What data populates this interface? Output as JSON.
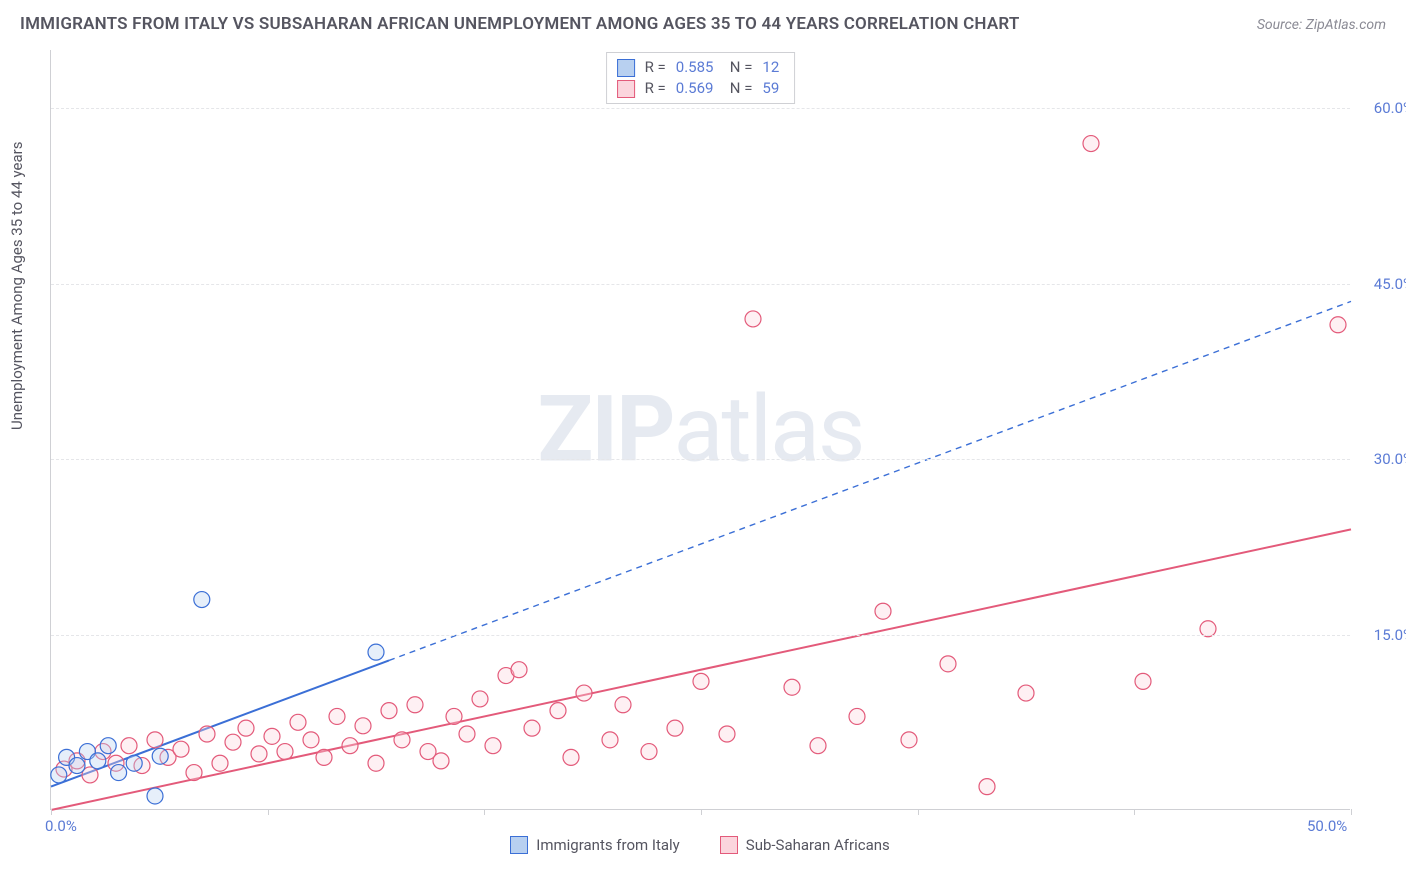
{
  "title": "IMMIGRANTS FROM ITALY VS SUBSAHARAN AFRICAN UNEMPLOYMENT AMONG AGES 35 TO 44 YEARS CORRELATION CHART",
  "source": "Source: ZipAtlas.com",
  "watermark_bold": "ZIP",
  "watermark_rest": "atlas",
  "y_axis_title": "Unemployment Among Ages 35 to 44 years",
  "colors": {
    "blue_fill": "#b8d0f0",
    "blue_stroke": "#3b6fd6",
    "pink_fill": "#fbd5dd",
    "pink_stroke": "#e35a7a",
    "axis_label": "#5b7bd5",
    "grid": "#e5e6e9",
    "text": "#555560"
  },
  "chart": {
    "type": "scatter",
    "xlim": [
      0,
      50
    ],
    "ylim": [
      0,
      65
    ],
    "x_tick_positions": [
      0,
      8.33,
      16.67,
      25,
      33.33,
      41.67,
      50
    ],
    "x_tick_labels": {
      "0": "0.0%",
      "50": "50.0%"
    },
    "y_ticks": [
      15,
      30,
      45,
      60
    ],
    "y_tick_labels": {
      "15": "15.0%",
      "30": "30.0%",
      "45": "45.0%",
      "60": "60.0%"
    },
    "marker_radius": 8,
    "marker_fill_opacity": 0.35,
    "line_width": 2,
    "dash_pattern": "6 5"
  },
  "stat_legend": {
    "rows": [
      {
        "swatch_fill": "#b8d0f0",
        "swatch_stroke": "#3b6fd6",
        "r_label": "R =",
        "r": "0.585",
        "n_label": "N =",
        "n": "12"
      },
      {
        "swatch_fill": "#fbd5dd",
        "swatch_stroke": "#e35a7a",
        "r_label": "R =",
        "r": "0.569",
        "n_label": "N =",
        "n": "59"
      }
    ]
  },
  "bottom_legend": [
    {
      "swatch_fill": "#b8d0f0",
      "swatch_stroke": "#3b6fd6",
      "label": "Immigrants from Italy"
    },
    {
      "swatch_fill": "#fbd5dd",
      "swatch_stroke": "#e35a7a",
      "label": "Sub-Saharan Africans"
    }
  ],
  "series": {
    "blue": {
      "points": [
        [
          0.3,
          3.0
        ],
        [
          0.6,
          4.5
        ],
        [
          1.0,
          3.8
        ],
        [
          1.4,
          5.0
        ],
        [
          1.8,
          4.2
        ],
        [
          2.2,
          5.5
        ],
        [
          2.6,
          3.2
        ],
        [
          3.2,
          4.0
        ],
        [
          4.0,
          1.2
        ],
        [
          4.2,
          4.6
        ],
        [
          5.8,
          18.0
        ],
        [
          12.5,
          13.5
        ]
      ],
      "trend": {
        "x1": 0,
        "y1": 2.0,
        "x2": 50,
        "y2": 43.5,
        "solid_until_x": 13
      }
    },
    "pink": {
      "points": [
        [
          0.5,
          3.5
        ],
        [
          1.0,
          4.2
        ],
        [
          1.5,
          3.0
        ],
        [
          2.0,
          5.0
        ],
        [
          2.5,
          4.0
        ],
        [
          3.0,
          5.5
        ],
        [
          3.5,
          3.8
        ],
        [
          4.0,
          6.0
        ],
        [
          4.5,
          4.5
        ],
        [
          5.0,
          5.2
        ],
        [
          5.5,
          3.2
        ],
        [
          6.0,
          6.5
        ],
        [
          6.5,
          4.0
        ],
        [
          7.0,
          5.8
        ],
        [
          7.5,
          7.0
        ],
        [
          8.0,
          4.8
        ],
        [
          8.5,
          6.3
        ],
        [
          9.0,
          5.0
        ],
        [
          9.5,
          7.5
        ],
        [
          10.0,
          6.0
        ],
        [
          10.5,
          4.5
        ],
        [
          11.0,
          8.0
        ],
        [
          11.5,
          5.5
        ],
        [
          12.0,
          7.2
        ],
        [
          12.5,
          4.0
        ],
        [
          13.0,
          8.5
        ],
        [
          13.5,
          6.0
        ],
        [
          14.0,
          9.0
        ],
        [
          14.5,
          5.0
        ],
        [
          15.0,
          4.2
        ],
        [
          15.5,
          8.0
        ],
        [
          16.0,
          6.5
        ],
        [
          16.5,
          9.5
        ],
        [
          17.0,
          5.5
        ],
        [
          17.5,
          11.5
        ],
        [
          18.0,
          12.0
        ],
        [
          18.5,
          7.0
        ],
        [
          19.5,
          8.5
        ],
        [
          20.0,
          4.5
        ],
        [
          20.5,
          10.0
        ],
        [
          21.5,
          6.0
        ],
        [
          22.0,
          9.0
        ],
        [
          23.0,
          5.0
        ],
        [
          24.0,
          7.0
        ],
        [
          25.0,
          11.0
        ],
        [
          26.0,
          6.5
        ],
        [
          27.0,
          42.0
        ],
        [
          28.5,
          10.5
        ],
        [
          29.5,
          5.5
        ],
        [
          31.0,
          8.0
        ],
        [
          32.0,
          17.0
        ],
        [
          33.0,
          6.0
        ],
        [
          34.5,
          12.5
        ],
        [
          36.0,
          2.0
        ],
        [
          37.5,
          10.0
        ],
        [
          40.0,
          57.0
        ],
        [
          42.0,
          11.0
        ],
        [
          44.5,
          15.5
        ],
        [
          49.5,
          41.5
        ]
      ],
      "trend": {
        "x1": 0,
        "y1": 0.0,
        "x2": 50,
        "y2": 24.0
      }
    }
  }
}
